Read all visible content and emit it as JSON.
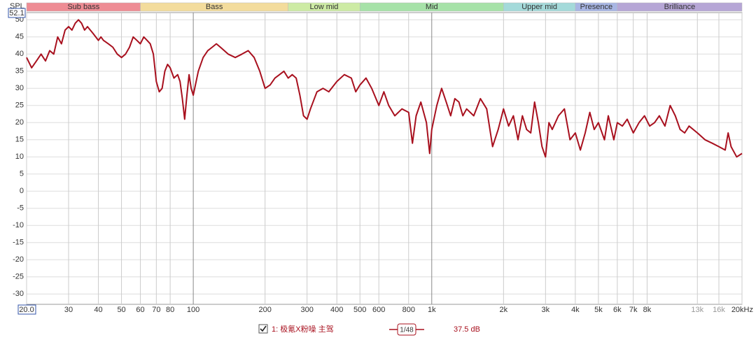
{
  "chart_data": {
    "type": "line",
    "y_label": "SPL",
    "xscale": "log",
    "xlim": [
      20,
      20000
    ],
    "ylim": [
      -33,
      52.1
    ],
    "xticks": [
      {
        "value": 20,
        "label": "20.0"
      },
      30,
      40,
      50,
      60,
      70,
      80,
      100,
      200,
      300,
      400,
      500,
      600,
      800,
      {
        "value": 1000,
        "label": "1k"
      },
      {
        "value": 2000,
        "label": "2k"
      },
      {
        "value": 3000,
        "label": "3k"
      },
      {
        "value": 4000,
        "label": "4k"
      },
      {
        "value": 5000,
        "label": "5k"
      },
      {
        "value": 6000,
        "label": "6k"
      },
      {
        "value": 7000,
        "label": "7k"
      },
      {
        "value": 8000,
        "label": "8k"
      },
      {
        "value": 13000,
        "label": "13k"
      },
      {
        "value": 16000,
        "label": "16k"
      },
      {
        "value": 20000,
        "label": "20kHz"
      }
    ],
    "yticks": [
      50,
      45,
      40,
      35,
      30,
      25,
      20,
      15,
      10,
      5,
      0,
      -5,
      -10,
      -15,
      -20,
      -25,
      -30
    ],
    "grid": true,
    "bands": [
      {
        "name": "Sub bass",
        "from": 20,
        "to": 60,
        "color": "#ee8c94"
      },
      {
        "name": "Bass",
        "from": 60,
        "to": 250,
        "color": "#f3dc9c"
      },
      {
        "name": "Low mid",
        "from": 250,
        "to": 500,
        "color": "#cdeba4"
      },
      {
        "name": "Mid",
        "from": 500,
        "to": 2000,
        "color": "#a6e2a8"
      },
      {
        "name": "Upper mid",
        "from": 2000,
        "to": 4000,
        "color": "#a4dada"
      },
      {
        "name": "Presence",
        "from": 4000,
        "to": 6000,
        "color": "#a8b6e4"
      },
      {
        "name": "Brilliance",
        "from": 6000,
        "to": 20000,
        "color": "#b6a6d6"
      }
    ],
    "smoothing": "1/48",
    "offset_label": "37.5 dB",
    "series": [
      {
        "name": "1: 极氪X粉噪 主驾",
        "color": "#a8101e",
        "x": [
          20,
          21,
          22,
          23,
          24,
          25,
          26,
          27,
          28,
          29,
          30,
          31,
          32,
          33,
          34,
          35,
          36,
          38,
          40,
          41,
          42,
          44,
          46,
          48,
          50,
          52,
          54,
          56,
          58,
          60,
          62,
          64,
          66,
          68,
          70,
          72,
          74,
          76,
          78,
          80,
          83,
          86,
          88,
          90,
          92,
          94,
          96,
          98,
          100,
          105,
          110,
          115,
          120,
          125,
          130,
          140,
          150,
          160,
          170,
          180,
          190,
          200,
          210,
          220,
          230,
          240,
          250,
          260,
          270,
          280,
          290,
          300,
          310,
          330,
          350,
          370,
          400,
          430,
          460,
          480,
          500,
          530,
          560,
          600,
          630,
          660,
          700,
          750,
          800,
          830,
          860,
          900,
          950,
          980,
          1000,
          1050,
          1100,
          1150,
          1200,
          1250,
          1300,
          1350,
          1400,
          1500,
          1600,
          1700,
          1800,
          1900,
          2000,
          2100,
          2200,
          2300,
          2400,
          2500,
          2600,
          2700,
          2800,
          2900,
          3000,
          3100,
          3200,
          3400,
          3600,
          3800,
          4000,
          4200,
          4400,
          4600,
          4800,
          5000,
          5300,
          5500,
          5800,
          6000,
          6300,
          6600,
          7000,
          7400,
          7800,
          8200,
          8600,
          9000,
          9500,
          10000,
          10500,
          11000,
          11500,
          12000,
          13000,
          14000,
          15000,
          16000,
          17000,
          17500,
          18000,
          19000,
          20000
        ],
        "values": [
          39,
          36,
          38,
          40,
          38,
          41,
          40,
          45,
          43,
          47,
          48,
          47,
          49,
          50,
          49,
          47,
          48,
          46,
          44,
          45,
          44,
          43,
          42,
          40,
          39,
          40,
          42,
          45,
          44,
          43,
          45,
          44,
          43,
          40,
          32,
          29,
          30,
          35,
          37,
          36,
          33,
          34,
          32,
          27,
          21,
          28,
          34,
          30,
          28,
          35,
          39,
          41,
          42,
          43,
          42,
          40,
          39,
          40,
          41,
          39,
          35,
          30,
          31,
          33,
          34,
          35,
          33,
          34,
          33,
          28,
          22,
          21,
          24,
          29,
          30,
          29,
          32,
          34,
          33,
          29,
          31,
          33,
          30,
          25,
          29,
          25,
          22,
          24,
          23,
          14,
          22,
          26,
          20,
          11,
          18,
          25,
          30,
          26,
          22,
          27,
          26,
          22,
          24,
          22,
          27,
          24,
          13,
          18,
          24,
          19,
          22,
          15,
          22,
          18,
          17,
          26,
          20,
          13,
          10,
          20,
          18,
          22,
          24,
          15,
          17,
          12,
          17,
          23,
          18,
          20,
          15,
          22,
          15,
          20,
          19,
          21,
          17,
          20,
          22,
          19,
          20,
          22,
          19,
          25,
          22,
          18,
          17,
          19,
          17,
          15,
          14,
          13,
          12,
          17,
          13,
          10,
          11
        ]
      }
    ]
  }
}
